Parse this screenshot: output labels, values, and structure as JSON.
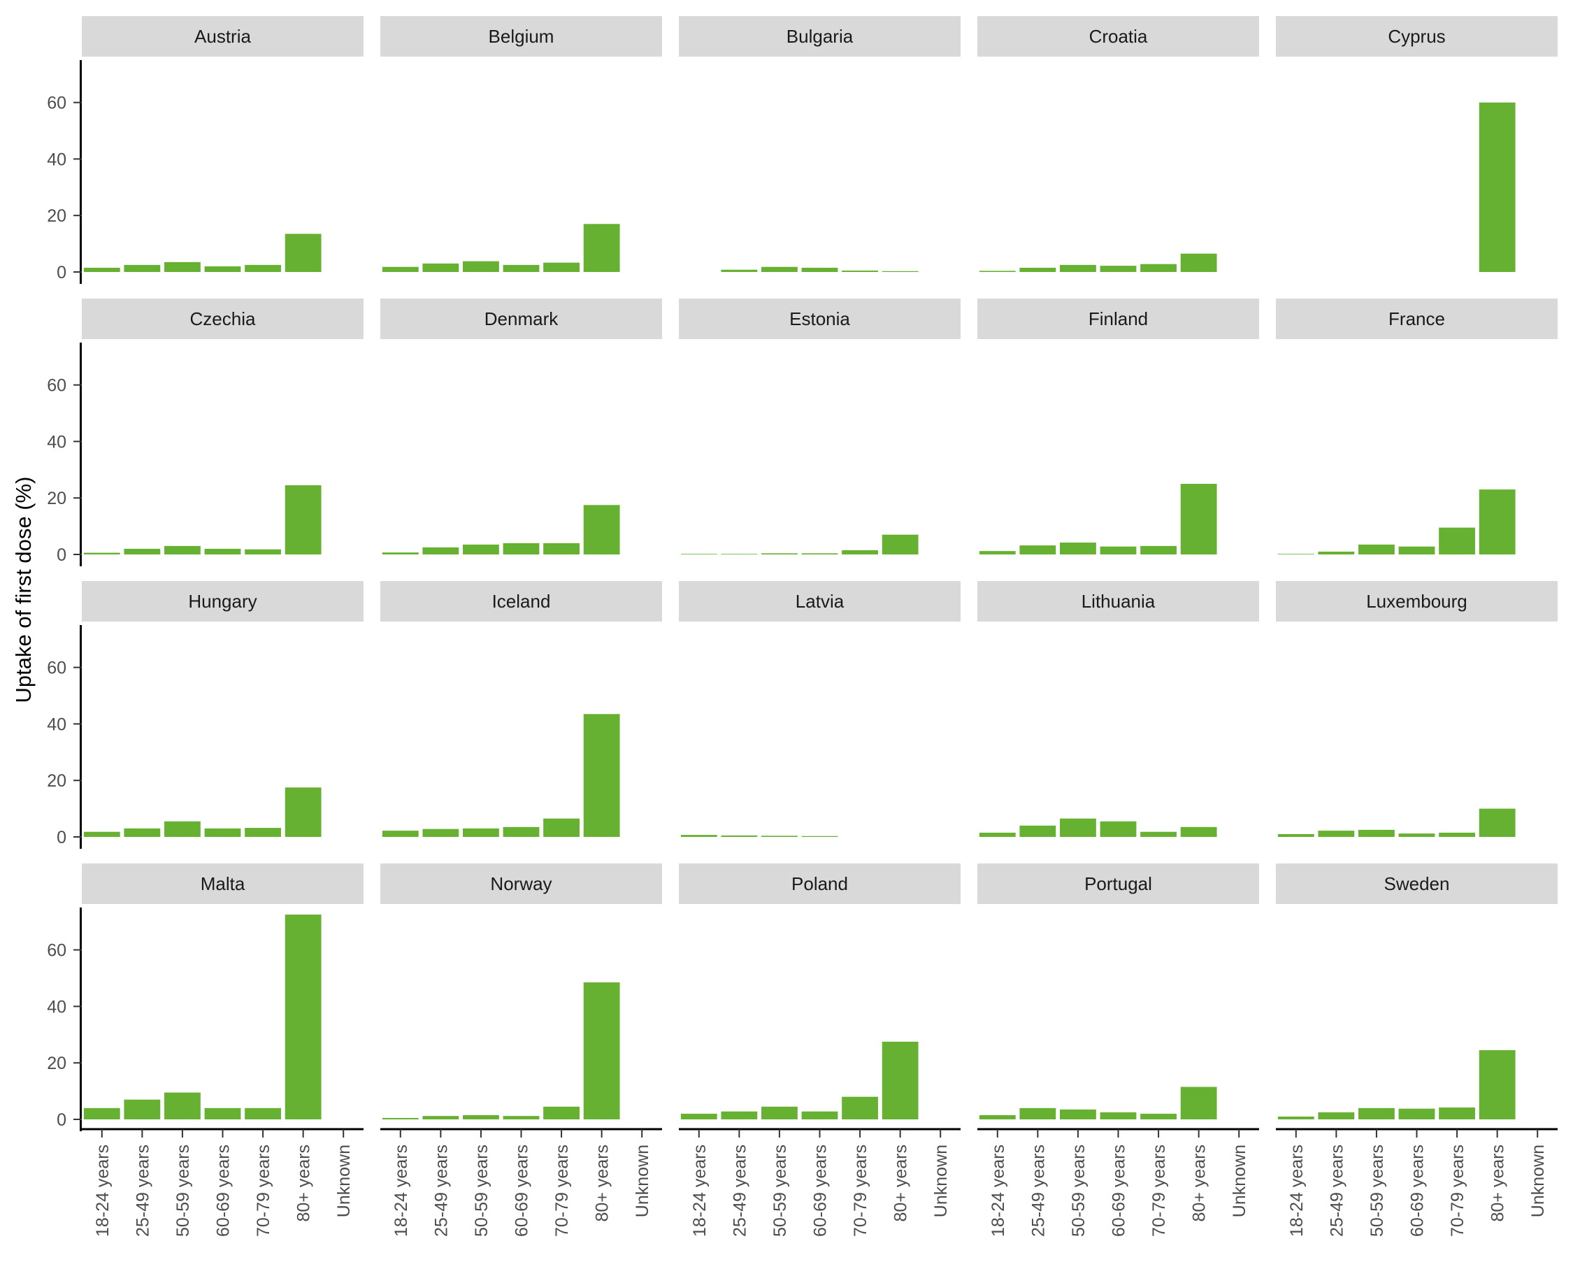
{
  "chart_data": {
    "type": "bar",
    "layout": "facet-grid",
    "ylabel": "Uptake of first dose (%)",
    "xlabel": "",
    "ylim": [
      0,
      75
    ],
    "yticks": [
      0,
      20,
      40,
      60
    ],
    "grid": false,
    "bar_color": "#66b132",
    "strip_color": "#d9d9d9",
    "categories": [
      "18-24 years",
      "25-49 years",
      "50-59 years",
      "60-69 years",
      "70-79 years",
      "80+ years",
      "Unknown"
    ],
    "panels": [
      {
        "name": "Austria",
        "values": [
          1.5,
          2.5,
          3.5,
          2,
          2.5,
          13.5,
          null
        ]
      },
      {
        "name": "Belgium",
        "values": [
          1.8,
          3,
          3.8,
          2.5,
          3.3,
          17,
          null
        ]
      },
      {
        "name": "Bulgaria",
        "values": [
          null,
          0.8,
          1.8,
          1.5,
          0.5,
          0.3,
          null
        ]
      },
      {
        "name": "Croatia",
        "values": [
          0.4,
          1.5,
          2.5,
          2.2,
          2.8,
          6.5,
          null
        ]
      },
      {
        "name": "Cyprus",
        "values": [
          null,
          null,
          null,
          null,
          null,
          60,
          null
        ]
      },
      {
        "name": "Czechia",
        "values": [
          0.6,
          2,
          3,
          2,
          1.8,
          24.5,
          null
        ]
      },
      {
        "name": "Denmark",
        "values": [
          0.7,
          2.5,
          3.5,
          4,
          4,
          17.5,
          null
        ]
      },
      {
        "name": "Estonia",
        "values": [
          0.2,
          0.2,
          0.4,
          0.4,
          1.5,
          7,
          null
        ]
      },
      {
        "name": "Finland",
        "values": [
          1.2,
          3.2,
          4.2,
          2.8,
          3,
          25,
          null
        ]
      },
      {
        "name": "France",
        "values": [
          0.2,
          1,
          3.5,
          2.8,
          9.5,
          23,
          null
        ]
      },
      {
        "name": "Hungary",
        "values": [
          1.8,
          3,
          5.5,
          3,
          3.2,
          17.5,
          null
        ]
      },
      {
        "name": "Iceland",
        "values": [
          2.2,
          2.8,
          3,
          3.5,
          6.5,
          43.5,
          null
        ]
      },
      {
        "name": "Latvia",
        "values": [
          0.7,
          0.5,
          0.4,
          0.3,
          null,
          null,
          null
        ]
      },
      {
        "name": "Lithuania",
        "values": [
          1.5,
          4,
          6.5,
          5.5,
          1.8,
          3.5,
          null
        ]
      },
      {
        "name": "Luxembourg",
        "values": [
          1,
          2.2,
          2.5,
          1.2,
          1.5,
          10,
          null
        ]
      },
      {
        "name": "Malta",
        "values": [
          4,
          7,
          9.5,
          4,
          4,
          72.5,
          null
        ]
      },
      {
        "name": "Norway",
        "values": [
          0.5,
          1.2,
          1.5,
          1.2,
          4.5,
          48.5,
          null
        ]
      },
      {
        "name": "Poland",
        "values": [
          2,
          2.8,
          4.5,
          2.8,
          8,
          27.5,
          null
        ]
      },
      {
        "name": "Portugal",
        "values": [
          1.5,
          4,
          3.5,
          2.5,
          2,
          11.5,
          null
        ]
      },
      {
        "name": "Sweden",
        "values": [
          1,
          2.5,
          4,
          3.8,
          4.2,
          24.5,
          null
        ]
      }
    ]
  }
}
